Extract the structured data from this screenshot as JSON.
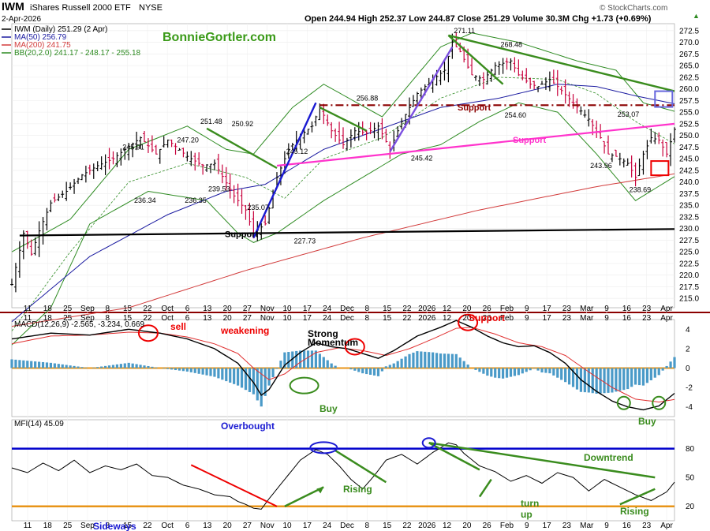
{
  "header": {
    "symbol": "IWM",
    "name": "iShares Russell 2000 ETF",
    "exchange": "NYSE",
    "date": "2-Apr-2026",
    "ohlc": "Open 244.94  High 252.37  Low 244.87  Close 251.29  Volume 30.3M  Chg +1.73 (+0.69%)",
    "chg_arrow": "▲",
    "copyright": "© StockCharts.com",
    "watermark": "BonnieGortler.com"
  },
  "legend": {
    "price": "IWM (Daily) 251.29 (2 Apr)",
    "ma50": "MA(50) 256.79",
    "ma200": "MA(200) 241.75",
    "bb": "BB(20,2.0) 241.17 - 248.17 - 255.18"
  },
  "colors": {
    "price_up": "#000000",
    "price_down": "#c8003c",
    "ma50": "#1a1aa0",
    "ma200": "#d23c3c",
    "bb": "#2e8b22",
    "trend_green": "#3a8c1e",
    "trend_blue": "#1a1ad2",
    "trend_purple": "#7b4fe0",
    "support_dark": "#8b0000",
    "support_magenta": "#ff33cc",
    "macd_zero": "#e89418",
    "mfi_80": "#0000cc",
    "mfi_20": "#e89418",
    "hist": "#4a9ac8"
  },
  "chart_data": [
    {
      "type": "line",
      "title": "IWM iShares Russell 2000 ETF (Daily)",
      "x_labels": [
        "11",
        "18",
        "25",
        "Sep",
        "8",
        "15",
        "22",
        "Oct",
        "6",
        "13",
        "20",
        "27",
        "Nov",
        "10",
        "17",
        "24",
        "Dec",
        "8",
        "15",
        "22",
        "2026",
        "12",
        "20",
        "26",
        "Feb",
        "9",
        "17",
        "23",
        "Mar",
        "9",
        "16",
        "23",
        "Apr"
      ],
      "ylim": [
        213,
        274
      ],
      "y_ticks": [
        215,
        217.5,
        220,
        222.5,
        225,
        227.5,
        230,
        232.5,
        235,
        237.5,
        240,
        242.5,
        245,
        247.5,
        250,
        252.5,
        255,
        257.5,
        260,
        262.5,
        265,
        267.5,
        270,
        272.5
      ],
      "annotations": [
        {
          "label": "245.91"
        },
        {
          "label": "247.20"
        },
        {
          "label": "251.48"
        },
        {
          "label": "250.92"
        },
        {
          "label": "245.12"
        },
        {
          "label": "236.34"
        },
        {
          "label": "236.35"
        },
        {
          "label": "239.53"
        },
        {
          "label": "235.07"
        },
        {
          "label": "227.73"
        },
        {
          "label": "256.88"
        },
        {
          "label": "245.42"
        },
        {
          "label": "271.11"
        },
        {
          "label": "268.48"
        },
        {
          "label": "254.60"
        },
        {
          "label": "253.07"
        },
        {
          "label": "243.96"
        },
        {
          "label": "238.69"
        }
      ],
      "text_labels": {
        "support_black": "Support",
        "support_dark": "Support",
        "support_magenta": "Support"
      },
      "key_points": {
        "closes": [
          [
            0,
            218.0
          ],
          [
            3,
            229.0
          ],
          [
            5,
            224.5
          ],
          [
            7,
            229.5
          ],
          [
            10,
            235.5
          ],
          [
            14,
            238.0
          ],
          [
            18,
            241.5
          ],
          [
            22,
            243.5
          ],
          [
            26,
            245.0
          ],
          [
            29,
            247.0
          ],
          [
            33,
            249.5
          ],
          [
            37,
            246.0
          ],
          [
            40,
            249.0
          ],
          [
            45,
            245.5
          ],
          [
            49,
            243.5
          ],
          [
            52,
            244.0
          ],
          [
            57,
            237.0
          ],
          [
            60,
            234.0
          ],
          [
            62,
            229.0
          ],
          [
            65,
            231.0
          ],
          [
            68,
            241.0
          ],
          [
            71,
            247.0
          ],
          [
            74,
            250.0
          ],
          [
            77,
            252.0
          ],
          [
            79,
            256.0
          ],
          [
            82,
            251.0
          ],
          [
            85,
            248.0
          ],
          [
            88,
            251.0
          ],
          [
            91,
            250.5
          ],
          [
            94,
            252.0
          ],
          [
            97,
            247.0
          ],
          [
            100,
            253.0
          ],
          [
            104,
            259.0
          ],
          [
            108,
            262.0
          ],
          [
            111,
            264.0
          ],
          [
            113,
            270.0
          ],
          [
            115,
            268.0
          ],
          [
            118,
            263.0
          ],
          [
            121,
            262.0
          ],
          [
            124,
            265.0
          ],
          [
            128,
            266.0
          ],
          [
            130,
            263.0
          ],
          [
            133,
            261.0
          ],
          [
            135,
            260.5
          ],
          [
            138,
            262.0
          ],
          [
            140,
            260.5
          ],
          [
            144,
            257.0
          ],
          [
            148,
            253.5
          ],
          [
            151,
            249.5
          ],
          [
            153,
            246.0
          ],
          [
            155,
            245.5
          ],
          [
            158,
            244.0
          ],
          [
            160,
            241.0
          ],
          [
            162,
            246.0
          ],
          [
            164,
            249.5
          ],
          [
            166,
            249.0
          ],
          [
            168,
            246.0
          ],
          [
            170,
            251.3
          ]
        ],
        "ma50": [
          [
            0,
            210.0
          ],
          [
            20,
            224.0
          ],
          [
            40,
            233.0
          ],
          [
            55,
            238.0
          ],
          [
            65,
            239.5
          ],
          [
            80,
            247.0
          ],
          [
            95,
            251.5
          ],
          [
            110,
            256.0
          ],
          [
            125,
            258.0
          ],
          [
            140,
            261.0
          ],
          [
            150,
            260.5
          ],
          [
            160,
            258.5
          ],
          [
            170,
            256.8
          ]
        ],
        "ma200": [
          [
            0,
            209.0
          ],
          [
            30,
            213.0
          ],
          [
            60,
            221.0
          ],
          [
            90,
            228.0
          ],
          [
            120,
            234.0
          ],
          [
            150,
            239.0
          ],
          [
            170,
            241.75
          ]
        ],
        "bb_mid": [
          [
            0,
            208.0
          ],
          [
            15,
            225.0
          ],
          [
            30,
            240.0
          ],
          [
            45,
            244.0
          ],
          [
            60,
            241.0
          ],
          [
            70,
            236.5
          ],
          [
            80,
            245.0
          ],
          [
            95,
            249.5
          ],
          [
            110,
            258.0
          ],
          [
            125,
            262.5
          ],
          [
            140,
            262.0
          ],
          [
            150,
            259.0
          ],
          [
            160,
            253.0
          ],
          [
            170,
            248.17
          ]
        ],
        "bb_upper": [
          [
            0,
            225.0
          ],
          [
            15,
            232.0
          ],
          [
            30,
            247.0
          ],
          [
            45,
            252.0
          ],
          [
            55,
            247.0
          ],
          [
            62,
            246.0
          ],
          [
            72,
            256.0
          ],
          [
            80,
            261.0
          ],
          [
            95,
            254.0
          ],
          [
            110,
            269.0
          ],
          [
            118,
            272.0
          ],
          [
            130,
            270.0
          ],
          [
            145,
            266.0
          ],
          [
            155,
            264.0
          ],
          [
            162,
            257.0
          ],
          [
            170,
            255.18
          ]
        ],
        "bb_lower": [
          [
            0,
            205.0
          ],
          [
            10,
            213.0
          ],
          [
            20,
            231.0
          ],
          [
            35,
            238.0
          ],
          [
            50,
            236.0
          ],
          [
            58,
            229.0
          ],
          [
            62,
            227.0
          ],
          [
            68,
            229.0
          ],
          [
            80,
            236.0
          ],
          [
            90,
            241.0
          ],
          [
            100,
            246.0
          ],
          [
            110,
            248.0
          ],
          [
            120,
            253.0
          ],
          [
            130,
            257.0
          ],
          [
            140,
            255.0
          ],
          [
            150,
            246.0
          ],
          [
            160,
            236.0
          ],
          [
            170,
            241.17
          ]
        ],
        "support_black": [
          [
            2,
            228.5
          ],
          [
            170,
            229.9
          ]
        ],
        "support_dark": [
          [
            79,
            256.5
          ],
          [
            170,
            256.5
          ]
        ],
        "support_magenta": [
          [
            68,
            243.5
          ],
          [
            170,
            252.5
          ]
        ],
        "trend_green_1": [
          [
            50,
            251.5
          ],
          [
            68,
            243.0
          ]
        ],
        "trend_green_2": [
          [
            79,
            256.0
          ],
          [
            91,
            251.0
          ]
        ],
        "trend_green_3": [
          [
            112,
            271.5
          ],
          [
            170,
            259.5
          ]
        ],
        "trend_green_4": [
          [
            112,
            271.5
          ],
          [
            126,
            261.0
          ]
        ],
        "trend_blue": [
          [
            62,
            228.0
          ],
          [
            78,
            257.0
          ]
        ],
        "trend_purple": [
          [
            97,
            246.5
          ],
          [
            113,
            269.0
          ]
        ]
      }
    },
    {
      "type": "line",
      "title": "MACD(12,26,9)",
      "legend": "MACD(12,26,9) -2.565, -3.234, 0.669",
      "ylim": [
        -5,
        5
      ],
      "y_ticks": [
        -4,
        -2,
        0,
        2,
        4
      ],
      "text_labels": {
        "sell": "sell",
        "weakening": "weakening",
        "strong": "Strong",
        "momentum": "Momentum",
        "buy1": "Buy",
        "support": "Support",
        "buy2": "Buy"
      },
      "macd": [
        [
          0,
          3.0
        ],
        [
          10,
          3.6
        ],
        [
          20,
          3.4
        ],
        [
          30,
          4.0
        ],
        [
          38,
          3.6
        ],
        [
          45,
          3.0
        ],
        [
          52,
          2.0
        ],
        [
          58,
          0.5
        ],
        [
          62,
          -1.5
        ],
        [
          64,
          -2.8
        ],
        [
          66,
          -2.2
        ],
        [
          70,
          0.3
        ],
        [
          74,
          1.6
        ],
        [
          78,
          2.6
        ],
        [
          82,
          2.2
        ],
        [
          86,
          2.0
        ],
        [
          90,
          1.5
        ],
        [
          94,
          1.0
        ],
        [
          98,
          1.8
        ],
        [
          104,
          3.3
        ],
        [
          110,
          4.2
        ],
        [
          114,
          4.9
        ],
        [
          118,
          4.2
        ],
        [
          122,
          3.3
        ],
        [
          126,
          2.6
        ],
        [
          130,
          2.2
        ],
        [
          134,
          2.3
        ],
        [
          138,
          1.6
        ],
        [
          142,
          0.5
        ],
        [
          146,
          -1.2
        ],
        [
          150,
          -2.4
        ],
        [
          154,
          -3.4
        ],
        [
          158,
          -4.0
        ],
        [
          162,
          -4.3
        ],
        [
          166,
          -3.9
        ],
        [
          170,
          -2.6
        ]
      ],
      "signal": [
        [
          0,
          2.5
        ],
        [
          10,
          3.3
        ],
        [
          20,
          3.4
        ],
        [
          30,
          3.7
        ],
        [
          38,
          3.6
        ],
        [
          45,
          3.2
        ],
        [
          52,
          2.5
        ],
        [
          58,
          1.5
        ],
        [
          62,
          0.0
        ],
        [
          66,
          -1.2
        ],
        [
          70,
          -0.6
        ],
        [
          74,
          0.6
        ],
        [
          78,
          1.6
        ],
        [
          84,
          2.1
        ],
        [
          90,
          1.8
        ],
        [
          96,
          1.3
        ],
        [
          102,
          2.0
        ],
        [
          108,
          3.0
        ],
        [
          114,
          4.1
        ],
        [
          118,
          4.2
        ],
        [
          124,
          3.5
        ],
        [
          130,
          2.6
        ],
        [
          136,
          2.2
        ],
        [
          142,
          1.3
        ],
        [
          148,
          -0.4
        ],
        [
          154,
          -2.0
        ],
        [
          160,
          -3.2
        ],
        [
          166,
          -3.5
        ],
        [
          170,
          -3.23
        ]
      ]
    },
    {
      "type": "line",
      "title": "MFI(14)",
      "legend": "MFI(14) 45.09",
      "ylim": [
        5,
        110
      ],
      "y_ticks": [
        20,
        50,
        80
      ],
      "text_labels": {
        "overbought": "Overbought",
        "rising1": "Rising",
        "downtrend": "Downtrend",
        "turn": "turn",
        "up": "up",
        "rising2": "Rising",
        "sideways": "Sideways"
      },
      "mfi": [
        [
          0,
          60
        ],
        [
          4,
          55
        ],
        [
          8,
          65
        ],
        [
          12,
          57
        ],
        [
          16,
          68
        ],
        [
          20,
          55
        ],
        [
          24,
          62
        ],
        [
          28,
          58
        ],
        [
          32,
          64
        ],
        [
          36,
          52
        ],
        [
          40,
          50
        ],
        [
          44,
          42
        ],
        [
          48,
          38
        ],
        [
          52,
          32
        ],
        [
          56,
          30
        ],
        [
          58,
          25
        ],
        [
          60,
          22
        ],
        [
          62,
          18
        ],
        [
          64,
          17
        ],
        [
          66,
          28
        ],
        [
          70,
          48
        ],
        [
          74,
          68
        ],
        [
          78,
          79
        ],
        [
          81,
          74
        ],
        [
          84,
          62
        ],
        [
          87,
          48
        ],
        [
          90,
          38
        ],
        [
          93,
          52
        ],
        [
          96,
          68
        ],
        [
          100,
          74
        ],
        [
          104,
          64
        ],
        [
          108,
          76
        ],
        [
          112,
          86
        ],
        [
          114,
          84
        ],
        [
          116,
          75
        ],
        [
          120,
          62
        ],
        [
          124,
          56
        ],
        [
          128,
          46
        ],
        [
          132,
          52
        ],
        [
          136,
          44
        ],
        [
          140,
          55
        ],
        [
          144,
          50
        ],
        [
          148,
          36
        ],
        [
          152,
          48
        ],
        [
          156,
          40
        ],
        [
          160,
          32
        ],
        [
          164,
          26
        ],
        [
          168,
          35
        ],
        [
          170,
          45.09
        ]
      ]
    }
  ]
}
